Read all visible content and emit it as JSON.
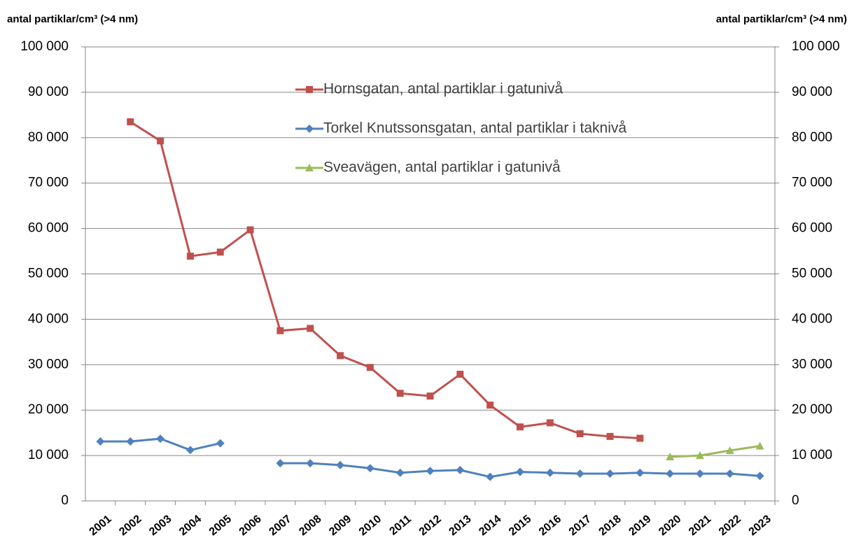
{
  "chart_data": {
    "type": "line",
    "y_label": "antal partiklar/cm³ (>4 nm)",
    "y2_label": "antal partiklar/cm³ (>4 nm)",
    "categories": [
      "2001",
      "2002",
      "2003",
      "2004",
      "2005",
      "2006",
      "2007",
      "2008",
      "2009",
      "2010",
      "2011",
      "2012",
      "2013",
      "2014",
      "2015",
      "2016",
      "2017",
      "2018",
      "2019",
      "2020",
      "2021",
      "2022",
      "2023"
    ],
    "series": [
      {
        "name": "Hornsgatan, antal partiklar i gatunivå",
        "color": "#c0504d",
        "marker": "square",
        "values": [
          null,
          83500,
          79300,
          53900,
          54800,
          59700,
          37500,
          38000,
          32000,
          29400,
          23700,
          23100,
          27900,
          21100,
          16300,
          17200,
          14800,
          14200,
          13800,
          null,
          null,
          null,
          null
        ]
      },
      {
        "name": "Torkel Knutssonsgatan, antal partiklar i taknivå",
        "color": "#4f81bd",
        "marker": "diamond",
        "values": [
          13100,
          13100,
          13700,
          11200,
          12700,
          null,
          8300,
          8300,
          7900,
          7200,
          6200,
          6600,
          6800,
          5300,
          6400,
          6200,
          6000,
          6000,
          6200,
          6000,
          6000,
          6000,
          5500
        ]
      },
      {
        "name": "Sveavägen, antal partiklar i gatunivå",
        "color": "#9bbb59",
        "marker": "triangle",
        "values": [
          null,
          null,
          null,
          null,
          null,
          null,
          null,
          null,
          null,
          null,
          null,
          null,
          null,
          null,
          null,
          null,
          null,
          null,
          null,
          9700,
          10000,
          11100,
          12100
        ]
      }
    ],
    "ylim": [
      0,
      100000
    ],
    "yticks": [
      0,
      {
        "value": 10000,
        "label": "10 000"
      },
      {
        "value": 20000,
        "label": "20 000"
      },
      {
        "value": 30000,
        "label": "30 000"
      },
      {
        "value": 40000,
        "label": "40 000"
      },
      {
        "value": 50000,
        "label": "50 000"
      },
      {
        "value": 60000,
        "label": "60 000"
      },
      {
        "value": 70000,
        "label": "70 000"
      },
      {
        "value": 80000,
        "label": "80 000"
      },
      {
        "value": 90000,
        "label": "90 000"
      },
      {
        "value": 100000,
        "label": "100 000"
      }
    ],
    "y2lim": [
      0,
      100000
    ],
    "y2ticks": [
      0,
      {
        "value": 10000,
        "label": "10 000"
      },
      {
        "value": 20000,
        "label": "20 000"
      },
      {
        "value": 30000,
        "label": "30 000"
      },
      {
        "value": 40000,
        "label": "40 000"
      },
      {
        "value": 50000,
        "label": "50 000"
      },
      {
        "value": 60000,
        "label": "60 000"
      },
      {
        "value": 70000,
        "label": "70 000"
      },
      {
        "value": 80000,
        "label": "80 000"
      },
      {
        "value": 90000,
        "label": "90 000"
      },
      {
        "value": 100000,
        "label": "100 000"
      }
    ],
    "grid": true
  }
}
